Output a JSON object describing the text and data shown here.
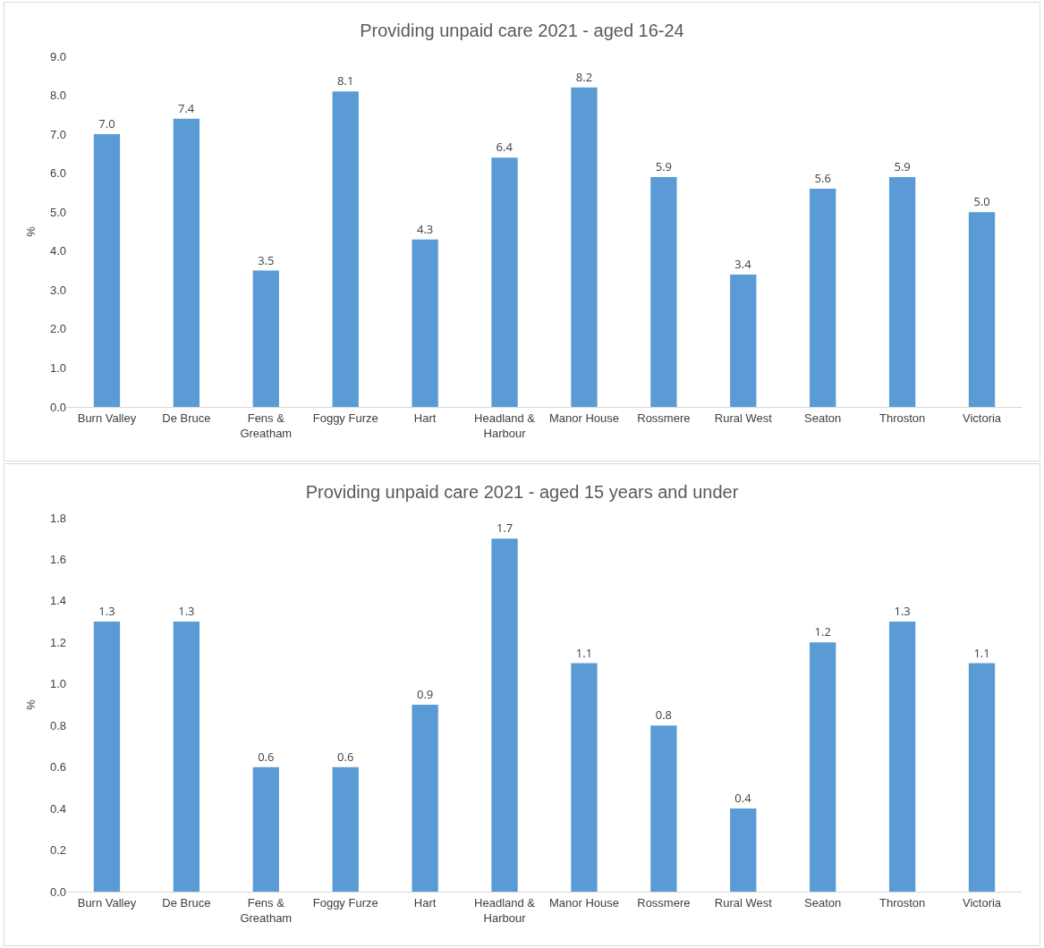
{
  "chart_data": [
    {
      "type": "bar",
      "title": "Providing unpaid care 2021 - aged 16-24",
      "ylabel": "%",
      "categories": [
        "Burn Valley",
        "De Bruce",
        "Fens & Greatham",
        "Foggy Furze",
        "Hart",
        "Headland & Harbour",
        "Manor House",
        "Rossmere",
        "Rural West",
        "Seaton",
        "Throston",
        "Victoria"
      ],
      "values": [
        7.0,
        7.4,
        3.5,
        8.1,
        4.3,
        6.4,
        8.2,
        5.9,
        3.4,
        5.6,
        5.9,
        5.0
      ],
      "value_labels": [
        "7.0",
        "7.4",
        "3.5",
        "8.1",
        "4.3",
        "6.4",
        "8.2",
        "5.9",
        "3.4",
        "5.6",
        "5.9",
        "5.0"
      ],
      "color": "#5b9bd5",
      "ylim": [
        0,
        9
      ],
      "yticks": [
        {
          "value": 0,
          "label": "0.0"
        },
        {
          "value": 1,
          "label": "1.0"
        },
        {
          "value": 2,
          "label": "2.0"
        },
        {
          "value": 3,
          "label": "3.0"
        },
        {
          "value": 4,
          "label": "4.0"
        },
        {
          "value": 5,
          "label": "5.0"
        },
        {
          "value": 6,
          "label": "6.0"
        },
        {
          "value": 7,
          "label": "7.0"
        },
        {
          "value": 8,
          "label": "8.0"
        },
        {
          "value": 9,
          "label": "9.0"
        }
      ],
      "grid": false,
      "legend": false
    },
    {
      "type": "bar",
      "title": "Providing unpaid care 2021 - aged 15 years and under",
      "ylabel": "%",
      "categories": [
        "Burn Valley",
        "De Bruce",
        "Fens & Greatham",
        "Foggy Furze",
        "Hart",
        "Headland & Harbour",
        "Manor House",
        "Rossmere",
        "Rural West",
        "Seaton",
        "Throston",
        "Victoria"
      ],
      "values": [
        1.3,
        1.3,
        0.6,
        0.6,
        0.9,
        1.7,
        1.1,
        0.8,
        0.4,
        1.2,
        1.3,
        1.1
      ],
      "value_labels": [
        "1.3",
        "1.3",
        "0.6",
        "0.6",
        "0.9",
        "1.7",
        "1.1",
        "0.8",
        "0.4",
        "1.2",
        "1.3",
        "1.1"
      ],
      "color": "#5b9bd5",
      "ylim": [
        0,
        1.8
      ],
      "yticks": [
        {
          "value": 0,
          "label": "0.0"
        },
        {
          "value": 0.2,
          "label": "0.2"
        },
        {
          "value": 0.4,
          "label": "0.4"
        },
        {
          "value": 0.6,
          "label": "0.6"
        },
        {
          "value": 0.8,
          "label": "0.8"
        },
        {
          "value": 1,
          "label": "1.0"
        },
        {
          "value": 1.2,
          "label": "1.2"
        },
        {
          "value": 1.4,
          "label": "1.4"
        },
        {
          "value": 1.6,
          "label": "1.6"
        },
        {
          "value": 1.8,
          "label": "1.8"
        }
      ],
      "grid": false,
      "legend": false
    }
  ]
}
